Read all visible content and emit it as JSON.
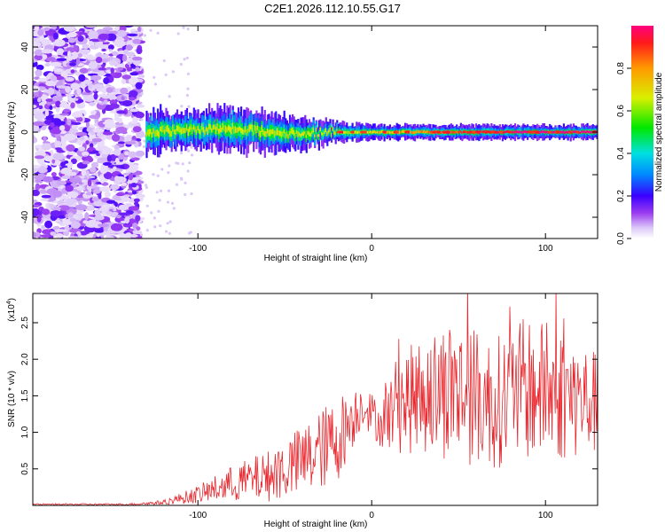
{
  "title": "C2E1.2026.112.10.55.G17",
  "colors": {
    "snr_line": "#e8282e",
    "frame": "#000000",
    "background": "#ffffff"
  },
  "chart_data": [
    {
      "type": "heatmap",
      "title": "C2E1.2026.112.10.55.G17",
      "xlabel": "Height of straight line (km)",
      "ylabel": "Frequency (Hz)",
      "xlim": [
        -195,
        130
      ],
      "ylim": [
        -50,
        50
      ],
      "xticks": [
        -100,
        0,
        100
      ],
      "xtick_labels": [
        "-100",
        "0",
        "100"
      ],
      "yticks": [
        -40,
        -20,
        0,
        20,
        40
      ],
      "ytick_labels": [
        "-40",
        "-20",
        "0",
        "20",
        "40"
      ],
      "colorbar": {
        "label": "Normalized spectral amplitude",
        "range": [
          0,
          1
        ],
        "ticks": [
          0.0,
          0.2,
          0.4,
          0.6,
          0.8
        ],
        "tick_labels": [
          "0.0",
          "0.2",
          "0.4",
          "0.6",
          "0.8"
        ]
      },
      "noise_region_x": [
        -195,
        -133
      ],
      "signal_band": [
        {
          "x": -130,
          "center_hz": 0,
          "halfwidth_hz": 6
        },
        {
          "x": -100,
          "center_hz": 1,
          "halfwidth_hz": 5
        },
        {
          "x": -80,
          "center_hz": 2,
          "halfwidth_hz": 6
        },
        {
          "x": -50,
          "center_hz": -1,
          "halfwidth_hz": 5
        },
        {
          "x": -25,
          "center_hz": 0,
          "halfwidth_hz": 3
        },
        {
          "x": 0,
          "center_hz": 0,
          "halfwidth_hz": 2
        },
        {
          "x": 50,
          "center_hz": 0,
          "halfwidth_hz": 2
        },
        {
          "x": 100,
          "center_hz": 0,
          "halfwidth_hz": 2
        },
        {
          "x": 130,
          "center_hz": 0,
          "halfwidth_hz": 2
        }
      ]
    },
    {
      "type": "line",
      "xlabel": "Height of straight line (km)",
      "ylabel": "SNR (10 * v/v)",
      "y_multiplier_label": "(x10",
      "y_multiplier_exponent": "4",
      "xlim": [
        -195,
        130
      ],
      "ylim": [
        0,
        29000
      ],
      "xticks": [
        -100,
        0,
        100
      ],
      "xtick_labels": [
        "-100",
        "0",
        "100"
      ],
      "yticks": [
        5000,
        10000,
        15000,
        20000,
        25000
      ],
      "ytick_labels": [
        "0.5",
        "1.0",
        "1.5",
        "2.0",
        "2.5"
      ],
      "series": [
        {
          "name": "SNR",
          "envelope": [
            {
              "x": -195,
              "mean": 150,
              "spread": 100
            },
            {
              "x": -140,
              "mean": 150,
              "spread": 120
            },
            {
              "x": -120,
              "mean": 400,
              "spread": 300
            },
            {
              "x": -100,
              "mean": 1500,
              "spread": 1200
            },
            {
              "x": -80,
              "mean": 3000,
              "spread": 2500
            },
            {
              "x": -60,
              "mean": 4000,
              "spread": 3500
            },
            {
              "x": -40,
              "mean": 6000,
              "spread": 5000
            },
            {
              "x": -20,
              "mean": 9000,
              "spread": 6000
            },
            {
              "x": -5,
              "mean": 14000,
              "spread": 3000
            },
            {
              "x": 5,
              "mean": 11000,
              "spread": 3000
            },
            {
              "x": 15,
              "mean": 14000,
              "spread": 7000
            },
            {
              "x": 30,
              "mean": 15000,
              "spread": 8000
            },
            {
              "x": 45,
              "mean": 16000,
              "spread": 10000
            },
            {
              "x": 70,
              "mean": 14000,
              "spread": 9000
            },
            {
              "x": 90,
              "mean": 16000,
              "spread": 10000
            },
            {
              "x": 110,
              "mean": 15000,
              "spread": 9000
            },
            {
              "x": 130,
              "mean": 14000,
              "spread": 7000
            }
          ]
        }
      ]
    }
  ]
}
